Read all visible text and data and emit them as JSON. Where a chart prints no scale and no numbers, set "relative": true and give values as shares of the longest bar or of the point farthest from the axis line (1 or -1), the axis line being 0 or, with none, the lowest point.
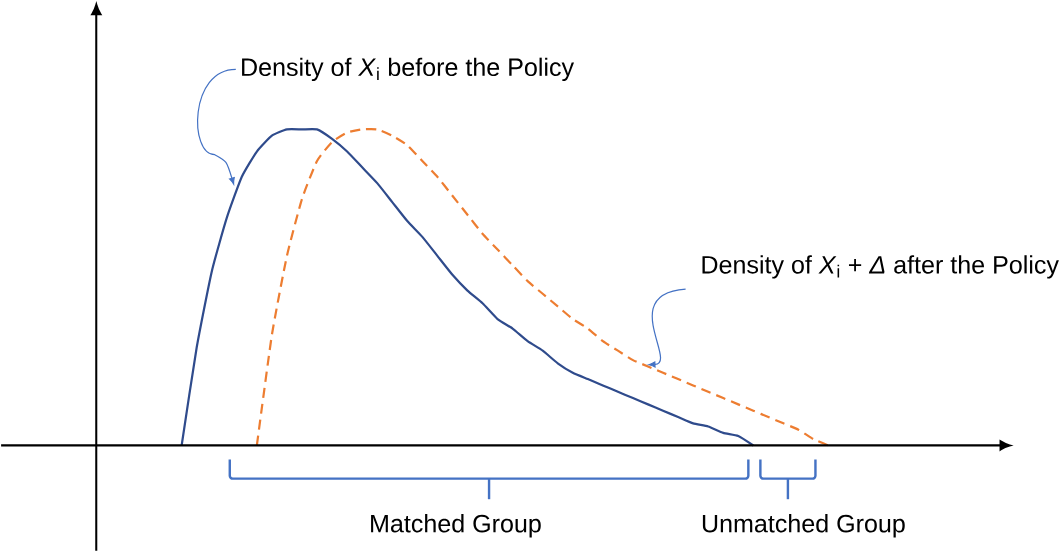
{
  "chart_data": {
    "type": "line",
    "relative": true,
    "categories": [
      null,
      null,
      null,
      null,
      null,
      null,
      null,
      null,
      null,
      null,
      null,
      null,
      null,
      null,
      null,
      null,
      null,
      null,
      null,
      null,
      null,
      null,
      null,
      null,
      null,
      null,
      null,
      null,
      null,
      null,
      null,
      null,
      null,
      null,
      null,
      null,
      null,
      null,
      null,
      null,
      null,
      null,
      null,
      null
    ],
    "series": [
      {
        "color": "#2f4b8c",
        "line_style": "solid",
        "values": [
          0,
          0.31,
          0.55,
          0.72,
          0.85,
          0.93,
          0.98,
          1,
          1,
          1,
          0.97,
          0.93,
          0.88,
          0.83,
          0.77,
          0.71,
          0.66,
          0.6,
          0.54,
          0.49,
          0.45,
          0.4,
          0.37,
          0.33,
          0.3,
          0.26,
          0.23,
          0.21,
          0.19,
          0.17,
          0.15,
          0.13,
          0.11,
          0.09,
          0.07,
          0.06,
          0.04,
          0.03,
          0,
          null,
          null,
          null,
          null,
          null
        ]
      },
      {
        "color": "#ed7d31",
        "line_style": "dashed",
        "values": [
          null,
          null,
          null,
          null,
          null,
          0,
          0.35,
          0.6,
          0.78,
          0.9,
          0.96,
          0.99,
          1,
          1,
          0.98,
          0.95,
          0.9,
          0.85,
          0.79,
          0.73,
          0.67,
          0.62,
          0.57,
          0.52,
          0.48,
          0.44,
          0.4,
          0.37,
          0.33,
          0.3,
          0.27,
          0.25,
          0.23,
          0.21,
          0.19,
          0.17,
          0.15,
          0.13,
          0.11,
          0.09,
          0.07,
          0.05,
          0.02,
          0
        ]
      }
    ],
    "annotations": [
      "Density of *X*$_{i}$ before the Policy",
      "Density of *X*$_{i}$ + *Δ* after the Policy",
      "Matched Group",
      "Unmatched Group"
    ]
  }
}
